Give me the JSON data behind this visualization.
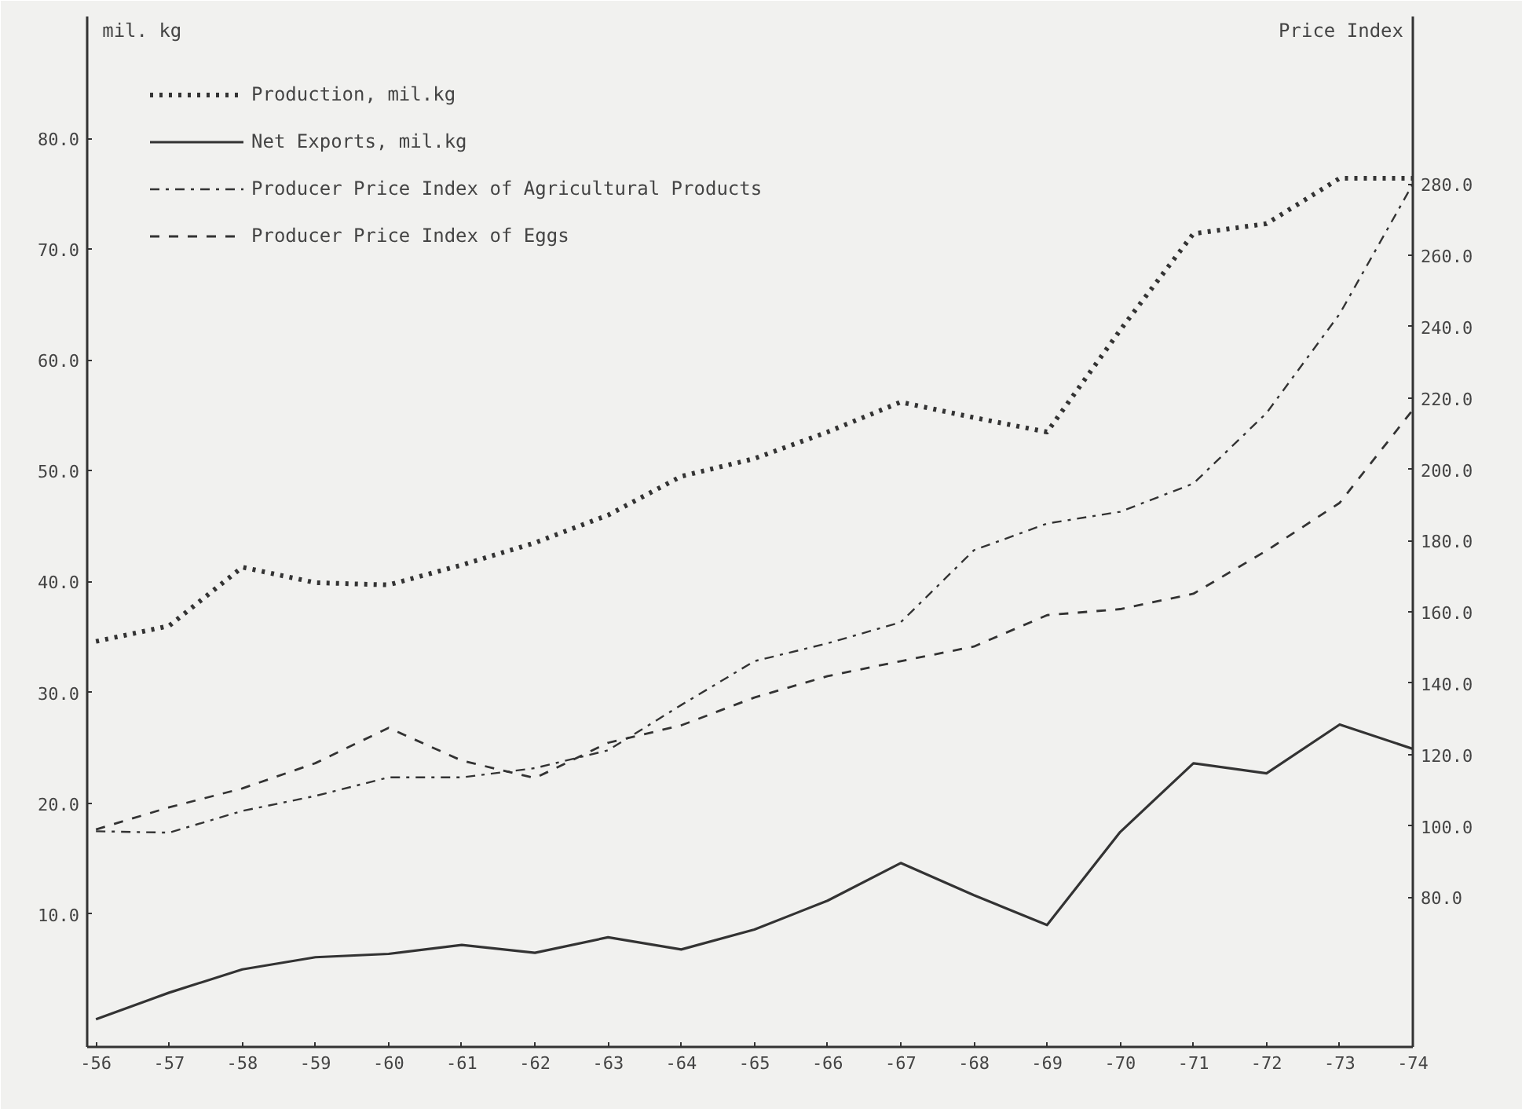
{
  "chart_data": {
    "type": "line",
    "ylabel": "mil. kg",
    "y2label": "Price Index",
    "categories": [
      "-56",
      "-57",
      "-58",
      "-59",
      "-60",
      "-61",
      "-62",
      "-63",
      "-64",
      "-65",
      "-66",
      "-67",
      "-68",
      "-69",
      "-70",
      "-71",
      "-72",
      "-73",
      "-74"
    ],
    "ylim": [
      -2,
      91
    ],
    "yticks": [
      {
        "value": 10,
        "label": "10.0"
      },
      {
        "value": 20,
        "label": "20.0"
      },
      {
        "value": 30,
        "label": "30.0"
      },
      {
        "value": 40,
        "label": "40.0"
      },
      {
        "value": 50,
        "label": "50.0"
      },
      {
        "value": 60,
        "label": "60.0"
      },
      {
        "value": 70,
        "label": "70.0"
      },
      {
        "value": 80,
        "label": "80.0"
      }
    ],
    "y2lim": [
      38,
      327
    ],
    "y2ticks": [
      {
        "value": 80,
        "label": "80.0"
      },
      {
        "value": 100,
        "label": "100.0"
      },
      {
        "value": 120,
        "label": "120.0"
      },
      {
        "value": 140,
        "label": "140.0"
      },
      {
        "value": 160,
        "label": "160.0"
      },
      {
        "value": 180,
        "label": "180.0"
      },
      {
        "value": 200,
        "label": "200.0"
      },
      {
        "value": 220,
        "label": "220.0"
      },
      {
        "value": 240,
        "label": "240.0"
      },
      {
        "value": 260,
        "label": "260.0"
      },
      {
        "value": 280,
        "label": "280.0"
      }
    ],
    "legend": "top left",
    "grid": false,
    "series": [
      {
        "name": "Production, mil.kg",
        "color": "#333333",
        "line_style": "dotted",
        "values": [
          34.6,
          36.0,
          41.3,
          39.9,
          39.7,
          41.5,
          43.5,
          46.0,
          49.5,
          51.1,
          53.5,
          56.2,
          54.8,
          53.5,
          62.7,
          71.4,
          72.3,
          76.4,
          76.4
        ]
      },
      {
        "name": "Net Exports, mil.kg",
        "color": "#333333",
        "line_style": "solid",
        "values": [
          0.5,
          2.9,
          5.0,
          6.1,
          6.4,
          7.2,
          6.5,
          7.9,
          6.8,
          8.6,
          11.2,
          14.6,
          11.7,
          9.0,
          17.4,
          23.6,
          22.7,
          27.1,
          24.9
        ]
      },
      {
        "name": "Producer Price Index of Agricultural Products",
        "color": "#333333",
        "line_style": "dashdot",
        "axis": "y2",
        "values": [
          98.5,
          98.1,
          104.2,
          108.4,
          113.6,
          113.6,
          116.2,
          121.2,
          133.9,
          146.2,
          151.2,
          157.1,
          177.3,
          184.8,
          188.1,
          196.0,
          215.8,
          243.6,
          280.0
        ]
      },
      {
        "name": "Producer Price Index of Eggs",
        "color": "#333333",
        "line_style": "dashed",
        "axis": "y2",
        "values": [
          99.0,
          105.2,
          110.5,
          117.6,
          127.5,
          118.3,
          113.4,
          123.3,
          128.2,
          136.0,
          142.0,
          146.2,
          150.3,
          159.1,
          160.8,
          165.1,
          177.2,
          190.6,
          216.7
        ]
      }
    ]
  }
}
